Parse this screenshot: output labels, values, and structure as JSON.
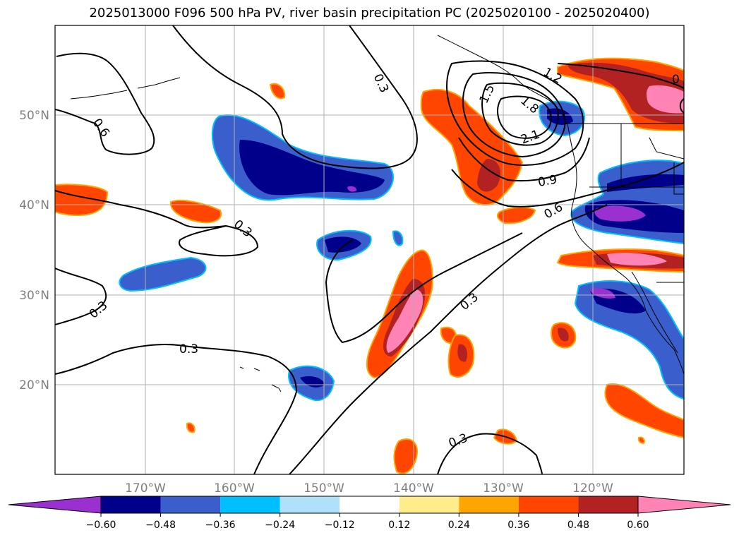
{
  "title": "2025013000 F096 500 hPa PV, river basin precipitation PC (2025020100 - 2025020400)",
  "map": {
    "lon_range": [
      -180,
      -110
    ],
    "lat_range": [
      10,
      60
    ],
    "lat_labels": [
      "50°N",
      "40°N",
      "30°N",
      "20°N"
    ],
    "lon_labels": [
      "170°W",
      "160°W",
      "150°W",
      "140°W",
      "130°W",
      "120°W"
    ],
    "contour_labels": [
      "0.3",
      "0.6",
      "0.3",
      "0.3",
      "0.3",
      "0.3",
      "0.3",
      "1.2",
      "1.5",
      "1.8",
      "2.1",
      "0.9",
      "0.6",
      "0"
    ]
  },
  "colorbar": {
    "ticks": [
      "−0.60",
      "−0.48",
      "−0.36",
      "−0.24",
      "−0.12",
      "0.12",
      "0.24",
      "0.36",
      "0.48",
      "0.60"
    ],
    "colors": [
      "#9b30d0",
      "#00008b",
      "#3a5fcd",
      "#00bfff",
      "#afe2fa",
      "#ffffff",
      "#ffec8b",
      "#ffa500",
      "#ff4500",
      "#b22222",
      "#ff83b4"
    ]
  }
}
